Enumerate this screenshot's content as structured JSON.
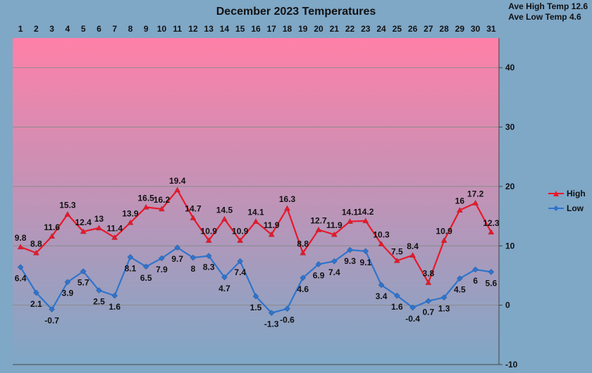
{
  "chart_data": {
    "type": "line",
    "title": "December 2023 Temperatures",
    "x": [
      1,
      2,
      3,
      4,
      5,
      6,
      7,
      8,
      9,
      10,
      11,
      12,
      13,
      14,
      15,
      16,
      17,
      18,
      19,
      20,
      21,
      22,
      23,
      24,
      25,
      26,
      27,
      28,
      29,
      30,
      31
    ],
    "series": [
      {
        "name": "High",
        "color": "#e8182a",
        "values": [
          9.8,
          8.8,
          11.6,
          15.3,
          12.4,
          13,
          11.4,
          13.9,
          16.5,
          16.2,
          19.4,
          14.7,
          10.9,
          14.5,
          10.9,
          14.1,
          11.9,
          16.3,
          8.8,
          12.7,
          11.9,
          14.1,
          14.2,
          10.3,
          7.5,
          8.4,
          3.8,
          10.9,
          16,
          17.2,
          12.3
        ]
      },
      {
        "name": "Low",
        "color": "#2f74cc",
        "values": [
          6.4,
          2.1,
          -0.7,
          3.9,
          5.7,
          2.5,
          1.6,
          8.1,
          6.5,
          7.9,
          9.7,
          8,
          8.3,
          4.7,
          7.4,
          1.5,
          -1.3,
          -0.6,
          4.6,
          6.9,
          7.4,
          9.3,
          9.1,
          3.4,
          1.6,
          -0.4,
          0.7,
          1.3,
          4.5,
          6,
          5.6
        ]
      }
    ],
    "ylim": [
      -10,
      45
    ],
    "yticks": [
      -10,
      0,
      10,
      20,
      30,
      40
    ],
    "grid": true,
    "legend_position": "right",
    "background_gradient": [
      "#ff80a8",
      "#7fa7c6"
    ],
    "annotations": [
      {
        "label": "Ave High Temp",
        "value": 12.6
      },
      {
        "label": "Ave Low Temp",
        "value": 4.6
      }
    ]
  }
}
